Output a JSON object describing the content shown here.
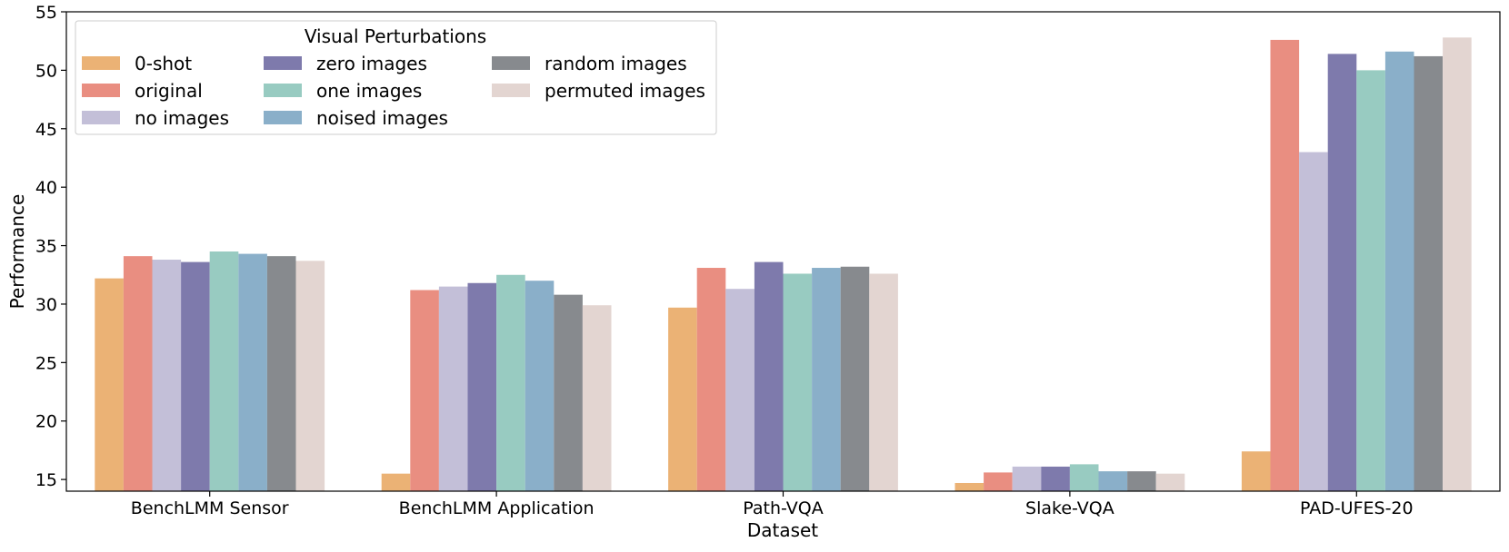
{
  "chart_data": {
    "type": "bar",
    "xlabel": "Dataset",
    "ylabel": "Performance",
    "ylim": [
      14,
      55
    ],
    "yticks": [
      15,
      20,
      25,
      30,
      35,
      40,
      45,
      50,
      55
    ],
    "categories": [
      "BenchLMM Sensor",
      "BenchLMM Application",
      "Path-VQA",
      "Slake-VQA",
      "PAD-UFES-20"
    ],
    "legend": {
      "title": "Visual Perturbations",
      "placement": "top-left",
      "columns": 3
    },
    "grid": false,
    "series": [
      {
        "name": "0-shot",
        "color": "#EBB275",
        "values": [
          32.2,
          15.5,
          29.7,
          14.7,
          17.4
        ]
      },
      {
        "name": "original",
        "color": "#E98E81",
        "values": [
          34.1,
          31.2,
          33.1,
          15.6,
          52.6
        ]
      },
      {
        "name": "no images",
        "color": "#C3BFD8",
        "values": [
          33.8,
          31.5,
          31.3,
          16.1,
          43.0
        ]
      },
      {
        "name": "zero images",
        "color": "#7E7AAC",
        "values": [
          33.6,
          31.8,
          33.6,
          16.1,
          51.4
        ]
      },
      {
        "name": "one images",
        "color": "#98CBC1",
        "values": [
          34.5,
          32.5,
          32.6,
          16.3,
          50.0
        ]
      },
      {
        "name": "noised images",
        "color": "#8AAFC9",
        "values": [
          34.3,
          32.0,
          33.1,
          15.7,
          51.6
        ]
      },
      {
        "name": "random images",
        "color": "#878A8E",
        "values": [
          34.1,
          30.8,
          33.2,
          15.7,
          51.2
        ]
      },
      {
        "name": "permuted images",
        "color": "#E3D5D1",
        "values": [
          33.7,
          29.9,
          32.6,
          15.5,
          52.8
        ]
      }
    ]
  }
}
